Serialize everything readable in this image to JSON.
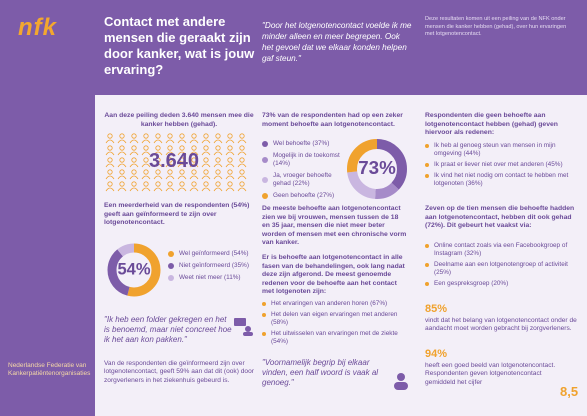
{
  "sidebar": {
    "logo": "nfk",
    "organization": "Nederlandse Federatie van Kankerpatiëntenorganisaties"
  },
  "header": {
    "title": "Contact met andere mensen die geraakt zijn door kanker, wat is jouw ervaring?",
    "quote": "\"Door het lotgenotencontact voelde ik me minder alleen en meer begrepen. Ook het gevoel dat we elkaar konden helpen gaf steun.\"",
    "source": "Deze resultaten komen uit een peiling van de NFK onder mensen die kanker hebben (gehad), over hun ervaringen met lotgenotencontact."
  },
  "column1": {
    "intro": "Aan deze peiling deden 3.640 mensen mee die kanker hebben (gehad).",
    "respondents": "3.640",
    "informed_text": "Een meerderheid van de respondenten (54%) geeft aan geïnformeerd te zijn over lotgenotencontact.",
    "donut": {
      "center_label": "54%",
      "segments": [
        {
          "label": "Wel geïnformeerd (54%)",
          "value": 54,
          "color": "#f0a22e"
        },
        {
          "label": "Niet geïnformeerd (35%)",
          "value": 35,
          "color": "#7d5ca9"
        },
        {
          "label": "Weet niet meer (11%)",
          "value": 11,
          "color": "#c9b6e0"
        }
      ]
    },
    "quote": "\"Ik heb een folder gekregen en het is benoemd, maar niet concreet hoe ik het aan kon pakken.\"",
    "footer_text": "Van de respondenten die geïnformeerd zijn over lotgenotencontact, geeft 59% aan dat dit (ook) door zorgverleners in het ziekenhuis gebeurd is."
  },
  "column2": {
    "intro": "73% van de respondenten had op een zeker moment behoefte aan lotgenotencontact.",
    "donut": {
      "center_label": "73%",
      "segments": [
        {
          "label": "Wel behoefte (37%)",
          "value": 37,
          "color": "#7d5ca9"
        },
        {
          "label": "Mogelijk in de toekomst (14%)",
          "value": 14,
          "color": "#a68bc9"
        },
        {
          "label": "Ja, vroeger behoefte gehad (22%)",
          "value": 22,
          "color": "#c9b6e0"
        },
        {
          "label": "Geen behoefte (27%)",
          "value": 27,
          "color": "#f0a22e"
        }
      ]
    },
    "need_text": "De meeste behoefte aan lotgenotencontact zien we bij vrouwen, mensen tussen de 18 en 35 jaar, mensen die niet meer beter worden of mensen met een chronische vorm van kanker.",
    "phase_text": "Er is behoefte aan lotgenotencontact in alle fasen van de behandelingen, ook lang nadat deze zijn afgerond. De meest genoemde redenen voor de behoefte aan het contact met lotgenoten zijn:",
    "reasons": [
      "Het ervaringen van anderen horen (67%)",
      "Het delen van eigen ervaringen met anderen (58%)",
      "Het uitwisselen van ervaringen met de ziekte (54%)"
    ],
    "quote": "\"Voornamelijk begrip bij elkaar vinden, een half woord is vaak al genoeg.\""
  },
  "column3": {
    "no_need_intro": "Respondenten die geen behoefte aan lotgenotencontact hebben (gehad) geven hiervoor als redenen:",
    "no_need_reasons": [
      "Ik heb al genoeg steun van mensen in mijn omgeving (44%)",
      "Ik praat er liever niet over met anderen (45%)",
      "Ik vind het niet nodig om contact te hebben met lotgenoten (36%)"
    ],
    "had_contact_intro": "Zeven op de tien mensen die behoefte hadden aan lotgenotencontact, hebben dit ook gehad (72%). Dit gebeurt het vaakst via:",
    "channels": [
      "Online contact zoals via een Facebookgroep of Instagram (32%)",
      "Deelname aan een lotgenotengroep of activiteit (25%)",
      "Een gespreksgroep (20%)"
    ],
    "stat1": "85%",
    "stat1_text": "vindt dat het belang van lotgenotencontact onder de aandacht moet worden gebracht bij zorgverleners.",
    "stat2": "94%",
    "stat2_text": "heeft een goed beeld van lotgenotencontact. Respondenten geven lotgenotencontact gemiddeld het cijfer",
    "grade": "8,5"
  }
}
